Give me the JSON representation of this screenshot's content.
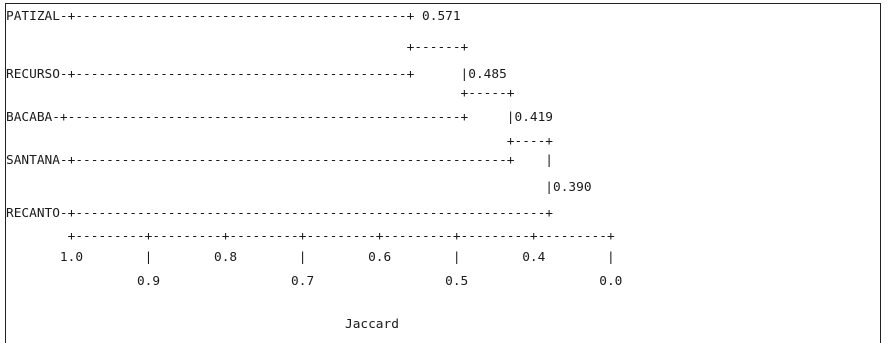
{
  "colors": {
    "text": "#1a1a1a",
    "border": "#222222",
    "background": "#ffffff"
  },
  "dendrogram": {
    "merge_levels": [
      {
        "joins": [
          "PATIZAL",
          "RECURSO"
        ],
        "value": 0.571
      },
      {
        "joins": [
          "PATIZAL+RECURSO",
          "BACABA"
        ],
        "value": 0.485
      },
      {
        "joins": [
          "PATIZAL+RECURSO+BACABA",
          "SANTANA"
        ],
        "value": 0.419
      },
      {
        "joins": [
          "ALL",
          "RECANTO"
        ],
        "value": 0.39
      }
    ],
    "lines": [
      "PATIZAL-+-------------------------------------------+ 0.571",
      "                                                    +------+",
      "RECURSO-+-------------------------------------------+      |0.485",
      "                                                           +-----+",
      "BACABA-+---------------------------------------------------+     |0.419",
      "                                                                 +----+",
      "SANTANA-+--------------------------------------------------------+    |",
      "                                                                      |0.390",
      "RECANTO-+-------------------------------------------------------------+",
      "        +---------+---------+---------+---------+---------+---------+---------+",
      "       1.0        |        0.8        |        0.6        |        0.4        |",
      "                 0.9                 0.7                 0.5                 0.0"
    ],
    "axis_label_line": "                                            Jaccard"
  }
}
